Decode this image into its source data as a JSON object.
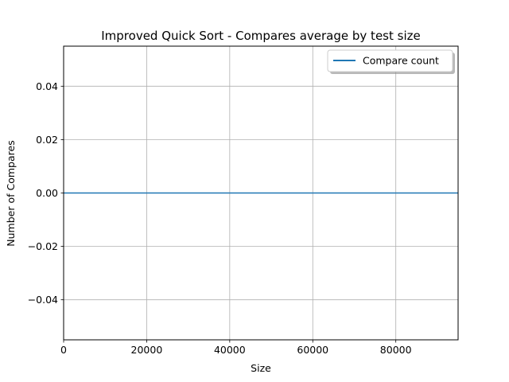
{
  "chart_data": {
    "type": "line",
    "title": "Improved Quick Sort - Compares average by test size",
    "xlabel": "Size",
    "ylabel": "Number of Compares",
    "xlim": [
      0,
      95000
    ],
    "ylim": [
      -0.055,
      0.055
    ],
    "xticks": [
      0,
      20000,
      40000,
      60000,
      80000
    ],
    "xtick_labels": [
      "0",
      "20000",
      "40000",
      "60000",
      "80000"
    ],
    "yticks": [
      0.04,
      0.02,
      0.0,
      -0.02,
      -0.04
    ],
    "ytick_labels": [
      "0.04",
      "0.02",
      "0.00",
      "−0.02",
      "−0.04"
    ],
    "grid": true,
    "legend": {
      "position": "upper right"
    },
    "series": [
      {
        "name": "Compare count",
        "color": "#1f77b4",
        "x": [
          0,
          95000
        ],
        "y": [
          0,
          0
        ]
      }
    ]
  }
}
